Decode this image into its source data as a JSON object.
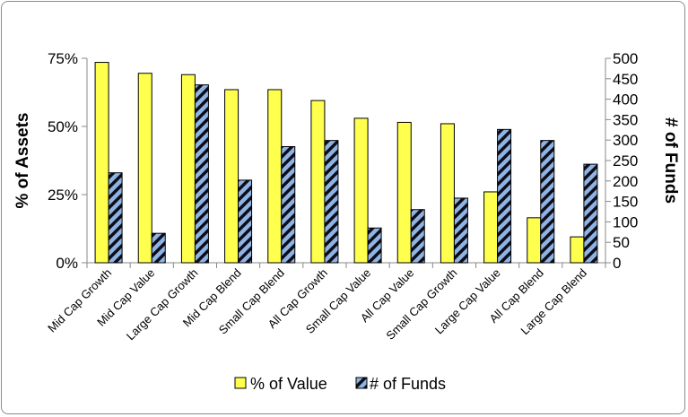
{
  "chart_data": {
    "type": "bar",
    "categories": [
      "Mid Cap Growth",
      "Mid Cap Value",
      "Large Cap Growth",
      "Mid Cap Blend",
      "Small Cap Blend",
      "All Cap Growth",
      "Small Cap Value",
      "All Cap Value",
      "Small Cap Growth",
      "Large Cap Value",
      "All Cap Blend",
      "Large Cap Blend"
    ],
    "series": [
      {
        "name": "% of Value",
        "axis": "left",
        "color": "#ffff4d",
        "values": [
          73.5,
          69.5,
          69,
          63.5,
          63.5,
          59.5,
          53,
          51.5,
          51,
          26,
          16.5,
          9.5
        ]
      },
      {
        "name": "# of Funds",
        "axis": "right",
        "color": "#8fb4e3",
        "pattern": "diagonal-hatch",
        "values": [
          220,
          72,
          435,
          202,
          284,
          299,
          85,
          130,
          158,
          326,
          299,
          241
        ]
      }
    ],
    "ylabel": "% of Assets",
    "y2label": "# of Funds",
    "ylim": [
      0,
      75
    ],
    "y2lim": [
      0,
      500
    ],
    "yticks": [
      "0%",
      "25%",
      "50%",
      "75%"
    ],
    "y2ticks": [
      "0",
      "50",
      "100",
      "150",
      "200",
      "250",
      "300",
      "350",
      "400",
      "450",
      "500"
    ],
    "legend": "bottom",
    "grid": false
  }
}
